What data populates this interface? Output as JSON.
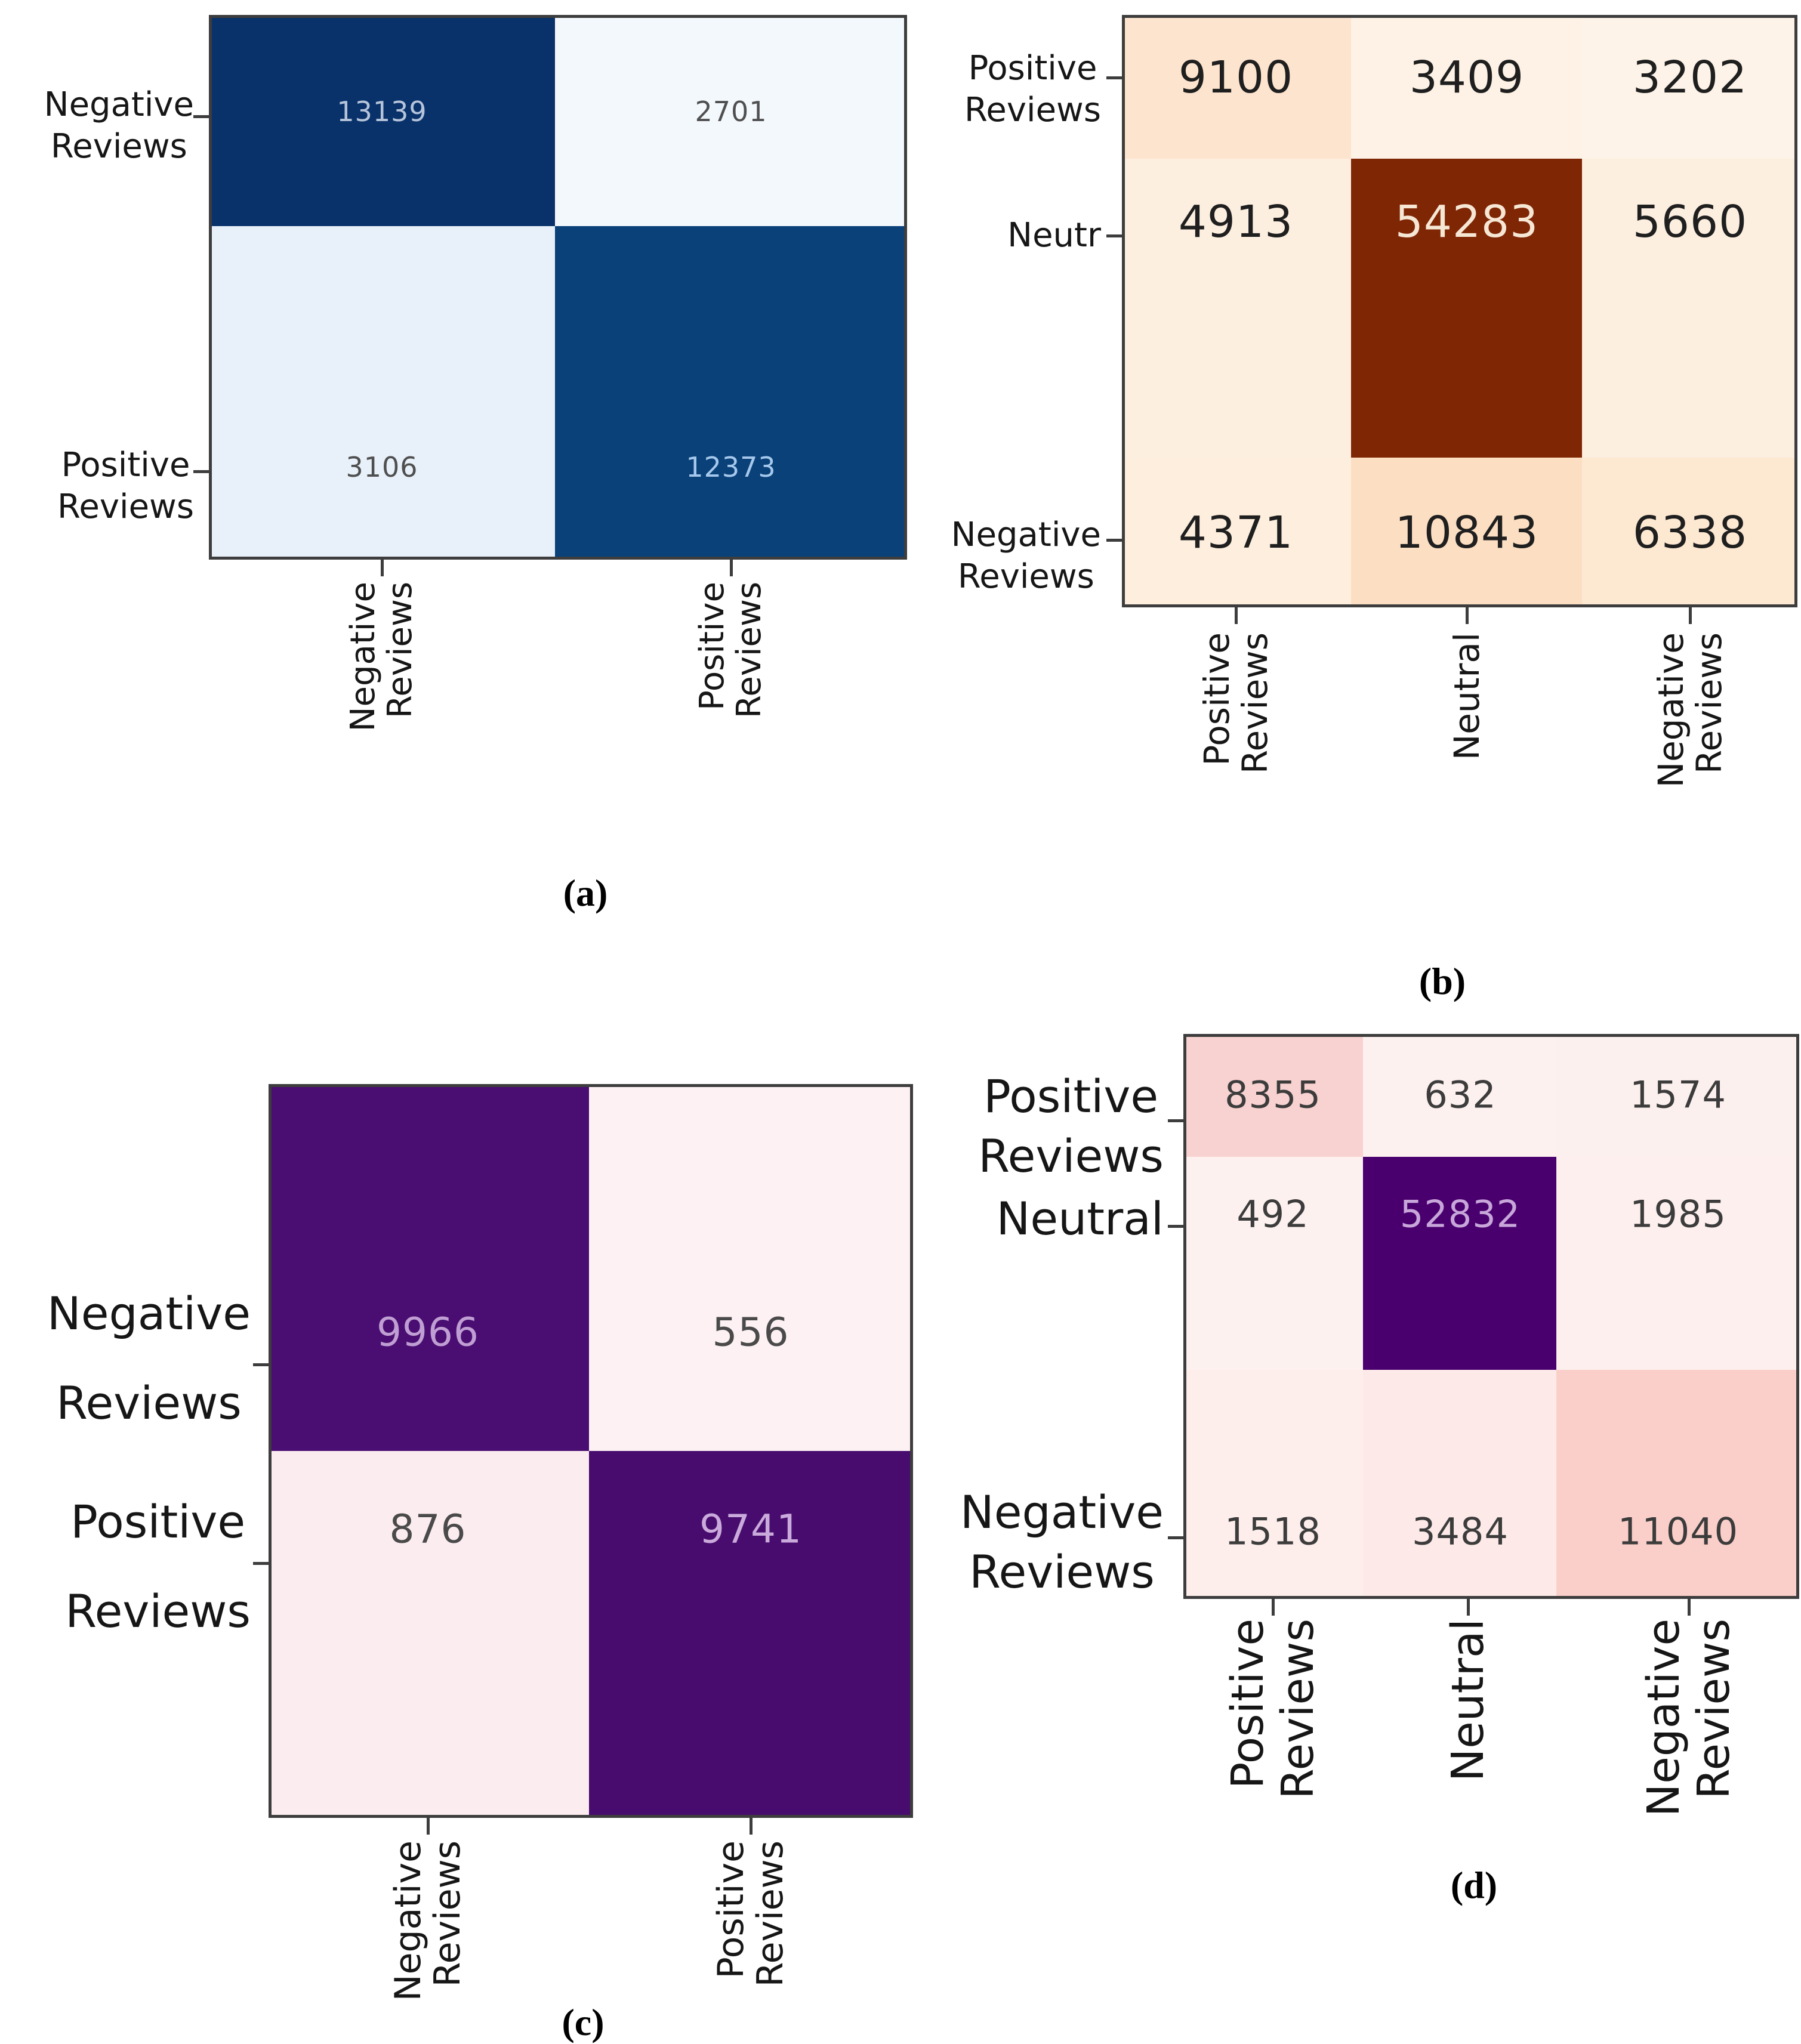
{
  "figure": {
    "background": "#ffffff",
    "description": "Four confusion-matrix heatmaps arranged in a 2x2 grid, captioned (a), (b), (c), (d)"
  },
  "chart_data": [
    {
      "type": "heatmap",
      "caption": "(a)",
      "colormap": "Blues",
      "grid": false,
      "y_labels": [
        [
          "Negative",
          "Reviews"
        ],
        [
          "Positive",
          "Reviews"
        ]
      ],
      "x_labels": [
        [
          "Negative",
          "Reviews"
        ],
        [
          "Positive",
          "Reviews"
        ]
      ],
      "values": [
        [
          13139,
          2701
        ],
        [
          3106,
          12373
        ]
      ],
      "cell_colors": [
        [
          "#09326b",
          "#f3f8fd"
        ],
        [
          "#e8f1f9",
          "#0a4179"
        ]
      ],
      "value_colors": [
        [
          "#b6c4da",
          "#4f4f4f"
        ],
        [
          "#4f4f4f",
          "#a6c8ec"
        ]
      ]
    },
    {
      "type": "heatmap",
      "caption": "(b)",
      "colormap": "Oranges",
      "grid": false,
      "y_labels": [
        [
          "Positive",
          "Reviews"
        ],
        [
          "Neutr"
        ],
        [
          "Negative",
          "Reviews"
        ]
      ],
      "x_labels": [
        [
          "Positive",
          "Reviews"
        ],
        [
          "Neutral"
        ],
        [
          "Negative",
          "Reviews"
        ]
      ],
      "values": [
        [
          9100,
          3409,
          3202
        ],
        [
          4913,
          54283,
          5660
        ],
        [
          4371,
          10843,
          6338
        ]
      ],
      "cell_colors": [
        [
          "#fde4ce",
          "#fdf2e5",
          "#fdf3e8"
        ],
        [
          "#fdefe0",
          "#7f2605",
          "#fdefe0"
        ],
        [
          "#fdeedd",
          "#fcdfc2",
          "#fde8d2"
        ]
      ],
      "value_colors": [
        [
          "#1f1f1f",
          "#1f1f1f",
          "#1f1f1f"
        ],
        [
          "#1f1f1f",
          "#f6e7d4",
          "#1f1f1f"
        ],
        [
          "#1f1f1f",
          "#1f1f1f",
          "#1f1f1f"
        ]
      ]
    },
    {
      "type": "heatmap",
      "caption": "(c)",
      "colormap": "RdPu",
      "grid": false,
      "y_labels": [
        [
          "Negative",
          "Reviews"
        ],
        [
          "Positive",
          "Reviews"
        ]
      ],
      "x_labels": [
        [
          "Negative",
          "Reviews"
        ],
        [
          "Positive",
          "Reviews"
        ]
      ],
      "values": [
        [
          9966,
          556
        ],
        [
          876,
          9741
        ]
      ],
      "cell_colors": [
        [
          "#4a0d71",
          "#fdf1f3"
        ],
        [
          "#fbecef",
          "#480c6f"
        ]
      ],
      "value_colors": [
        [
          "#bf9ed3",
          "#4a4a4a"
        ],
        [
          "#4a4a4a",
          "#c9aadb"
        ]
      ]
    },
    {
      "type": "heatmap",
      "caption": "(d)",
      "colormap": "RdPu",
      "grid": false,
      "y_labels": [
        [
          "Positive",
          "Reviews"
        ],
        [
          "Neutral"
        ],
        [
          "Negative",
          "Reviews"
        ]
      ],
      "x_labels": [
        [
          "Positive",
          "Reviews"
        ],
        [
          "Neutral"
        ],
        [
          "Negative",
          "Reviews"
        ]
      ],
      "values": [
        [
          8355,
          632,
          1574
        ],
        [
          492,
          52832,
          1985
        ],
        [
          1518,
          3484,
          11040
        ]
      ],
      "cell_colors": [
        [
          "#f8d2d0",
          "#fdf1ef",
          "#fcf0ee"
        ],
        [
          "#fdf1ef",
          "#49006e",
          "#fcefed"
        ],
        [
          "#fdeeec",
          "#fdeae8",
          "#fbcfc9"
        ]
      ],
      "value_colors": [
        [
          "#3c3c3c",
          "#3c3c3c",
          "#3c3c3c"
        ],
        [
          "#3c3c3c",
          "#c7a6d9",
          "#3c3c3c"
        ],
        [
          "#3c3c3c",
          "#3c3c3c",
          "#3c3c3c"
        ]
      ]
    }
  ]
}
